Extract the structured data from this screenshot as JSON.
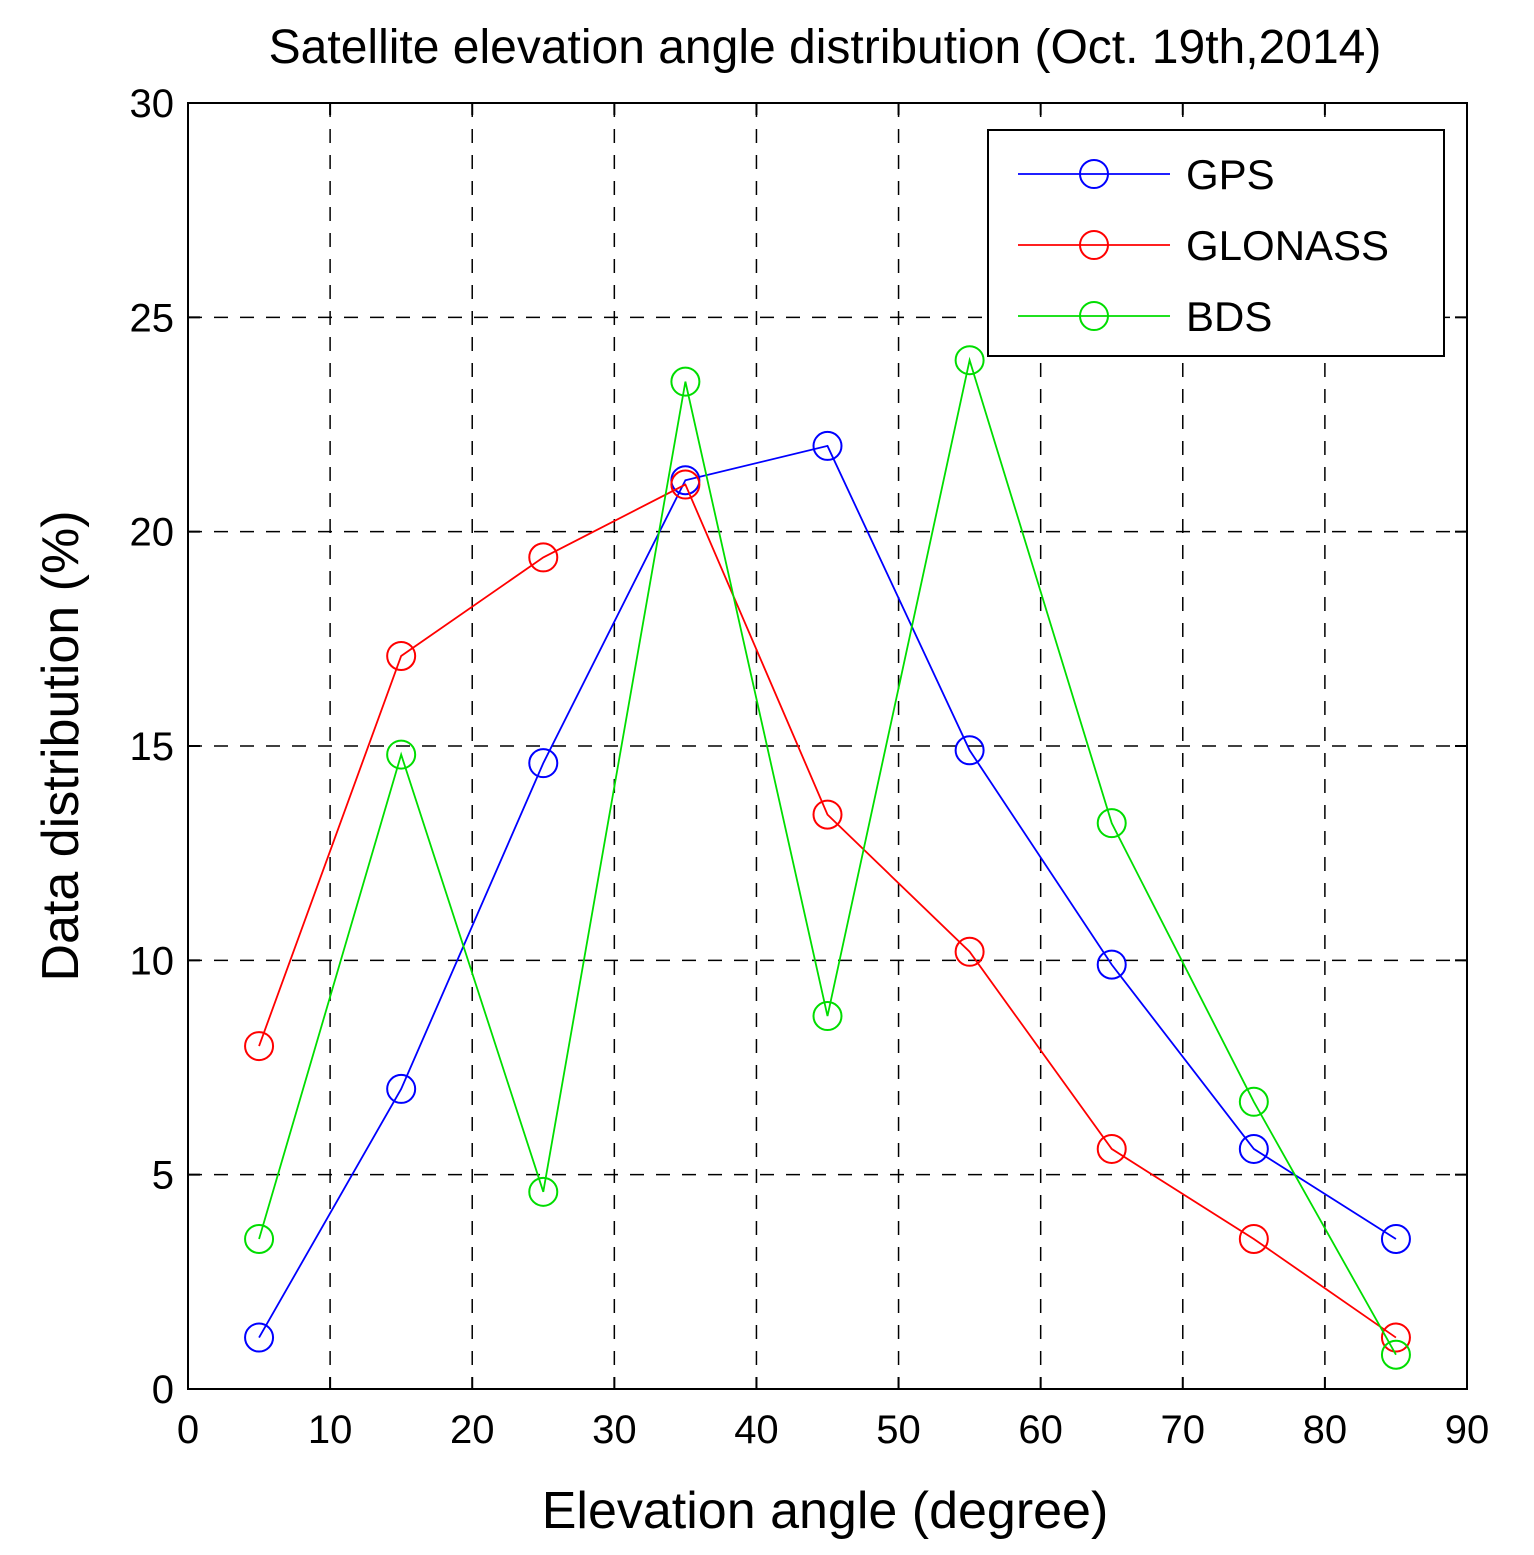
{
  "chart_data": {
    "type": "line",
    "title": "Satellite elevation angle distribution (Oct. 19th,2014)",
    "xlabel": "Elevation angle (degree)",
    "ylabel": "Data distribution (%)",
    "xlim": [
      0,
      90
    ],
    "ylim": [
      0,
      30
    ],
    "xticks": [
      0,
      10,
      20,
      30,
      40,
      50,
      60,
      70,
      80,
      90
    ],
    "yticks": [
      0,
      5,
      10,
      15,
      20,
      25,
      30
    ],
    "xtick_labels": [
      "0",
      "10",
      "20",
      "30",
      "40",
      "50",
      "60",
      "70",
      "80",
      "90"
    ],
    "ytick_labels": [
      "0",
      "5",
      "10",
      "15",
      "20",
      "25",
      "30"
    ],
    "grid": true,
    "legend_position": "top-right",
    "x": [
      5,
      15,
      25,
      35,
      45,
      55,
      65,
      75,
      85
    ],
    "series": [
      {
        "name": "GPS",
        "color": "#0000ff",
        "marker": "circle",
        "values": [
          1.2,
          7.0,
          14.6,
          21.2,
          22.0,
          14.9,
          9.9,
          5.6,
          3.5
        ]
      },
      {
        "name": "GLONASS",
        "color": "#ff0000",
        "marker": "circle",
        "values": [
          8.0,
          17.1,
          19.4,
          21.1,
          13.4,
          10.2,
          5.6,
          3.5,
          1.2
        ]
      },
      {
        "name": "BDS",
        "color": "#00dd00",
        "marker": "circle",
        "values": [
          3.5,
          14.8,
          4.6,
          23.5,
          8.7,
          24.0,
          13.2,
          6.7,
          0.8
        ]
      }
    ]
  }
}
